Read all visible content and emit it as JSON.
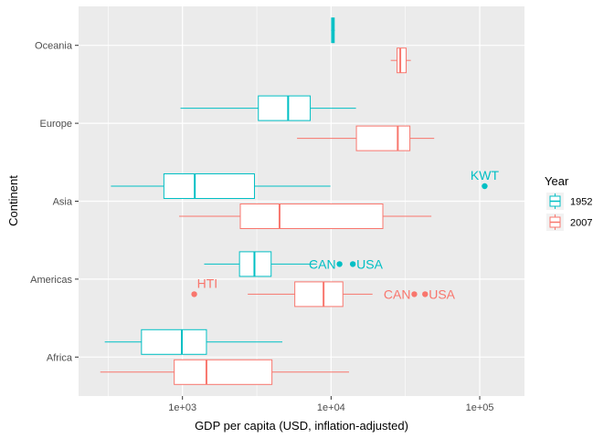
{
  "chart_data": {
    "type": "boxplot",
    "orientation": "horizontal",
    "xlabel": "GDP per capita (USD, inflation-adjusted)",
    "ylabel": "Continent",
    "x_scale": "log10",
    "xlim": [
      200,
      200000
    ],
    "x_ticks": [
      {
        "value": 1000,
        "label": "1e+03"
      },
      {
        "value": 10000,
        "label": "1e+04"
      },
      {
        "value": 100000,
        "label": "1e+05"
      }
    ],
    "categories": [
      "Africa",
      "Americas",
      "Asia",
      "Europe",
      "Oceania"
    ],
    "grid": true,
    "legend": {
      "title": "Year",
      "position": "right",
      "entries": [
        "1952",
        "2007"
      ]
    },
    "colors": {
      "1952": "#00BFC4",
      "2007": "#F8766D"
    },
    "series": [
      {
        "name": "1952",
        "boxes": [
          {
            "category": "Africa",
            "whisker_low": 300,
            "q1": 530,
            "median": 990,
            "q3": 1450,
            "whisker_high": 4700
          },
          {
            "category": "Americas",
            "whisker_low": 1400,
            "q1": 2420,
            "median": 3050,
            "q3": 3950,
            "whisker_high": 8000
          },
          {
            "category": "Asia",
            "whisker_low": 330,
            "q1": 750,
            "median": 1210,
            "q3": 3050,
            "whisker_high": 9900
          },
          {
            "category": "Europe",
            "whisker_low": 970,
            "q1": 3240,
            "median": 5140,
            "q3": 7240,
            "whisker_high": 14700
          },
          {
            "category": "Oceania",
            "whisker_low": 10000,
            "q1": 10080,
            "median": 10300,
            "q3": 10500,
            "whisker_high": 10600
          }
        ],
        "outliers": [
          {
            "category": "Americas",
            "x": 11400,
            "label": "CAN"
          },
          {
            "category": "Americas",
            "x": 14000,
            "label": "USA"
          },
          {
            "category": "Asia",
            "x": 108000,
            "label": "KWT"
          }
        ]
      },
      {
        "name": "2007",
        "boxes": [
          {
            "category": "Africa",
            "whisker_low": 280,
            "q1": 880,
            "median": 1450,
            "q3": 4000,
            "whisker_high": 13200
          },
          {
            "category": "Americas",
            "whisker_low": 2750,
            "q1": 5700,
            "median": 8900,
            "q3": 12000,
            "whisker_high": 19000
          },
          {
            "category": "Asia",
            "whisker_low": 950,
            "q1": 2450,
            "median": 4500,
            "q3": 22300,
            "whisker_high": 47300
          },
          {
            "category": "Europe",
            "whisker_low": 5900,
            "q1": 14800,
            "median": 28100,
            "q3": 33900,
            "whisker_high": 49400
          },
          {
            "category": "Oceania",
            "whisker_low": 25200,
            "q1": 27800,
            "median": 29200,
            "q3": 32000,
            "whisker_high": 34400
          }
        ],
        "outliers": [
          {
            "category": "Americas",
            "x": 1200,
            "label": "HTI"
          },
          {
            "category": "Americas",
            "x": 36300,
            "label": "CAN"
          },
          {
            "category": "Americas",
            "x": 42900,
            "label": "USA"
          }
        ]
      }
    ]
  }
}
